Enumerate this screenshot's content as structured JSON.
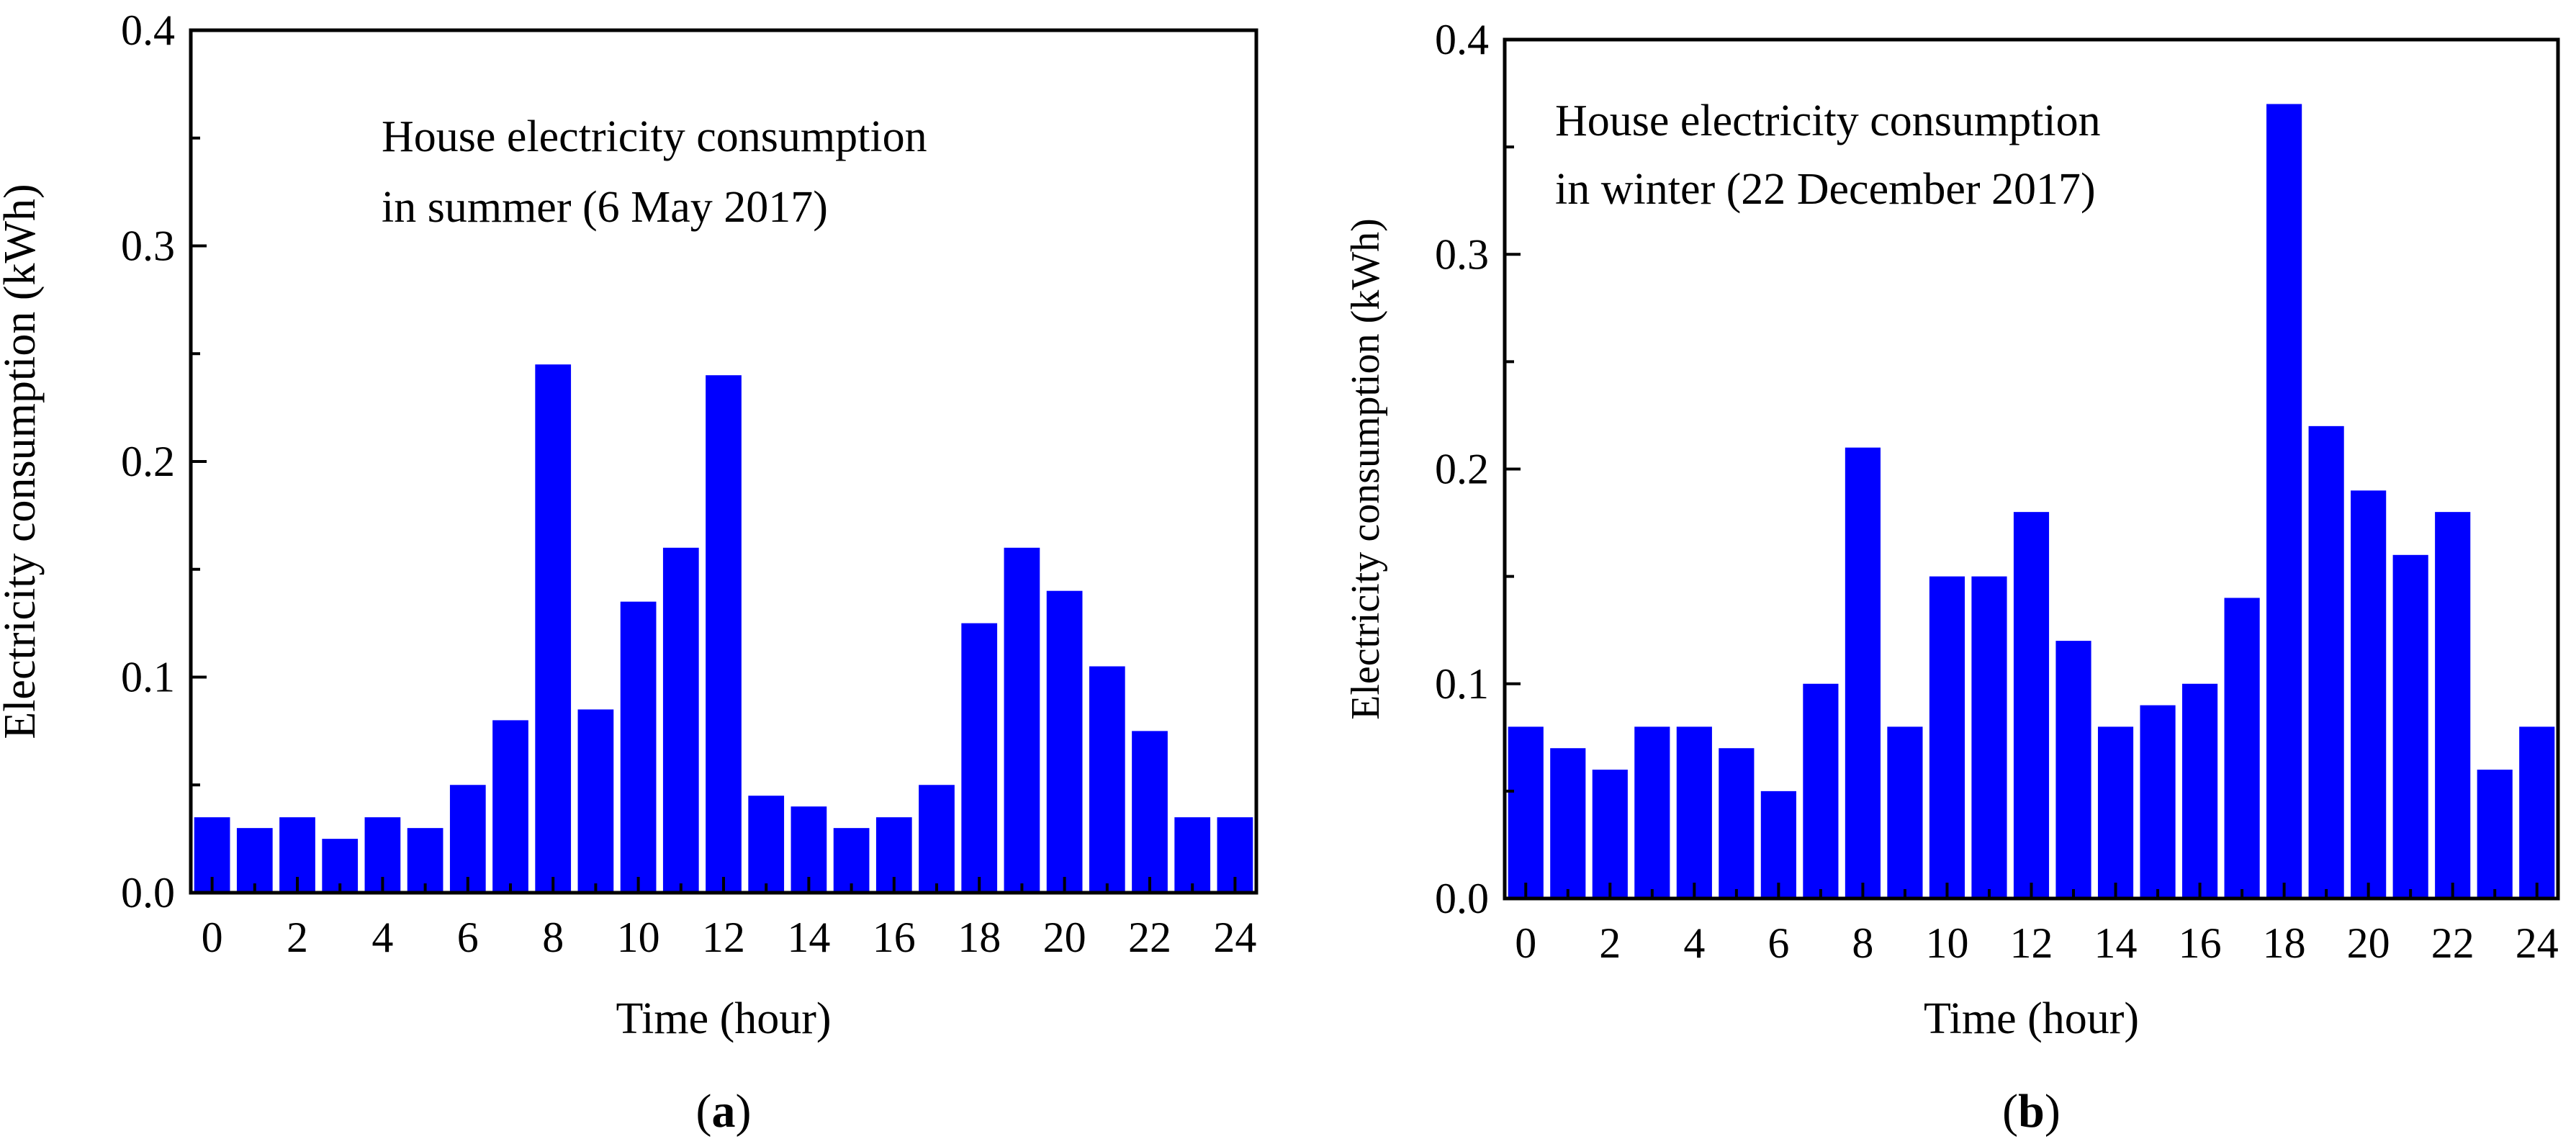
{
  "chart_data": [
    {
      "type": "bar",
      "panel": "a",
      "panel_label": "a",
      "title": "",
      "annotation_lines": [
        "House electricity consumption",
        " in summer (6 May 2017)"
      ],
      "xlabel": "Time (hour)",
      "ylabel": "Electricity consumption (kWh)",
      "xlim": [
        -0.5,
        24.5
      ],
      "ylim": [
        0,
        0.4
      ],
      "x_ticks": [
        0,
        2,
        4,
        6,
        8,
        10,
        12,
        14,
        16,
        18,
        20,
        22,
        24
      ],
      "y_ticks": [
        "0.0",
        "0.1",
        "0.2",
        "0.3",
        "0.4"
      ],
      "bar_color": "#0000ff",
      "categories": [
        0,
        1,
        2,
        3,
        4,
        5,
        6,
        7,
        8,
        9,
        10,
        11,
        12,
        13,
        14,
        15,
        16,
        17,
        18,
        19,
        20,
        21,
        22,
        23,
        24
      ],
      "values": [
        0.035,
        0.03,
        0.035,
        0.025,
        0.035,
        0.03,
        0.05,
        0.08,
        0.245,
        0.085,
        0.135,
        0.16,
        0.24,
        0.045,
        0.04,
        0.03,
        0.035,
        0.05,
        0.125,
        0.16,
        0.14,
        0.105,
        0.075,
        0.035,
        0.035
      ]
    },
    {
      "type": "bar",
      "panel": "b",
      "panel_label": "b",
      "title": "",
      "annotation_lines": [
        "House electricity consumption",
        "  in winter (22 December 2017)"
      ],
      "xlabel": "Time (hour)",
      "ylabel": "Electricity consumption (kWh)",
      "xlim": [
        -0.5,
        24.5
      ],
      "ylim": [
        0,
        0.4
      ],
      "x_ticks": [
        0,
        2,
        4,
        6,
        8,
        10,
        12,
        14,
        16,
        18,
        20,
        22,
        24
      ],
      "y_ticks": [
        "0.0",
        "0.1",
        "0.2",
        "0.3",
        "0.4"
      ],
      "bar_color": "#0000ff",
      "categories": [
        0,
        1,
        2,
        3,
        4,
        5,
        6,
        7,
        8,
        9,
        10,
        11,
        12,
        13,
        14,
        15,
        16,
        17,
        18,
        19,
        20,
        21,
        22,
        23,
        24
      ],
      "values": [
        0.08,
        0.07,
        0.06,
        0.08,
        0.08,
        0.07,
        0.05,
        0.1,
        0.21,
        0.08,
        0.15,
        0.15,
        0.18,
        0.12,
        0.08,
        0.09,
        0.1,
        0.14,
        0.37,
        0.22,
        0.19,
        0.16,
        0.18,
        0.06,
        0.08
      ]
    }
  ]
}
